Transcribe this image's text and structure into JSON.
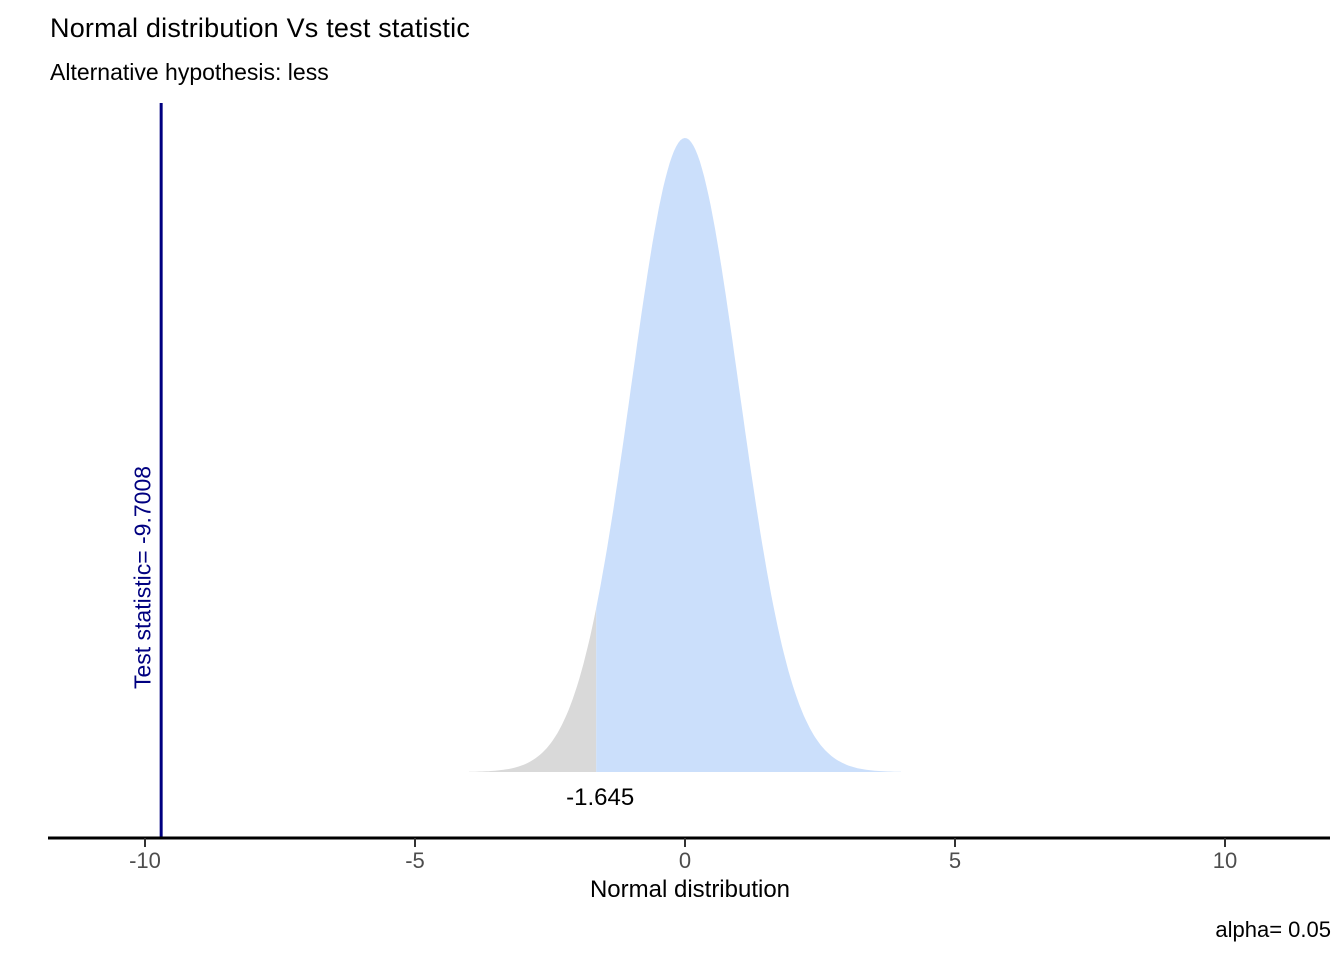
{
  "chart_data": {
    "type": "area",
    "title": "Normal distribution Vs test statistic",
    "subtitle": "Alternative hypothesis: less",
    "xlabel": "Normal distribution",
    "distribution": "standard normal density",
    "mean": 0,
    "sd": 1,
    "curve_x_range": [
      -4,
      4
    ],
    "x_axis_range": [
      -11.8,
      11.95
    ],
    "x_ticks": [
      -10,
      -5,
      0,
      5,
      10
    ],
    "critical_value": -1.645,
    "critical_value_label": "-1.645",
    "test_statistic": -9.7008,
    "test_statistic_label": "Test statistic= -9.7008",
    "alpha": 0.05,
    "alpha_label": "alpha= 0.05",
    "rejection_region": "x < -1.645",
    "legend": "none",
    "grid": "off",
    "colors": {
      "acceptance_fill": "#cbdffb",
      "rejection_fill": "#d9d9d9",
      "test_statistic_line": "#000080",
      "test_statistic_text": "#000080",
      "axis_line": "#000000",
      "tick_mark": "#333333",
      "tick_label": "#4d4d4d",
      "annotation_text": "#000000",
      "background": "#ffffff"
    }
  }
}
